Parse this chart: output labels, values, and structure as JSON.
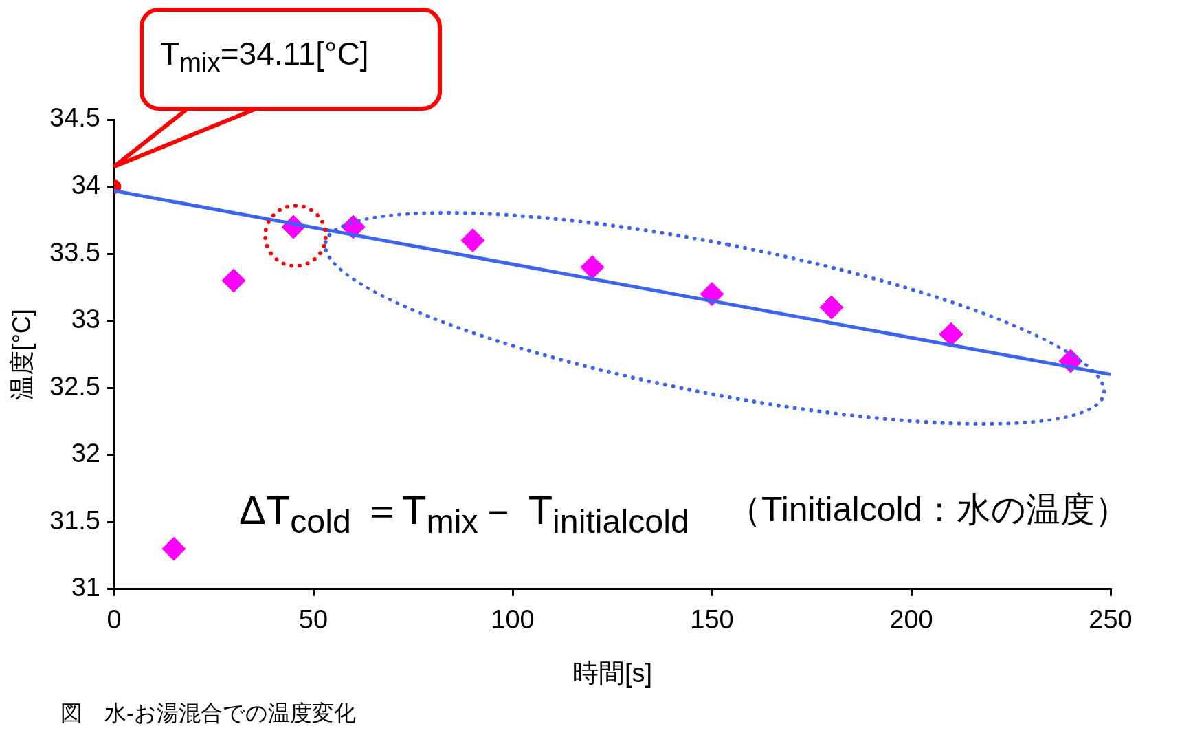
{
  "chart_data": {
    "type": "scatter",
    "xlabel": "時間[s]",
    "ylabel": "温度[°C]",
    "xlim": [
      0,
      250
    ],
    "xticks": [
      0,
      50,
      100,
      150,
      200,
      250
    ],
    "ylim": [
      31,
      34.5
    ],
    "yticks": [
      31,
      31.5,
      32,
      32.5,
      33,
      33.5,
      34,
      34.5
    ],
    "grid": false,
    "legend": false,
    "series": [
      {
        "type": "line",
        "color": "#3c64f0",
        "x": [
          0,
          250
        ],
        "values": [
          33.97,
          32.6
        ],
        "marker": "none",
        "line_style": "solid"
      },
      {
        "color": "#ff00ff",
        "x": [
          15,
          30,
          45,
          60,
          90,
          120,
          150,
          180,
          210,
          240
        ],
        "values": [
          31.3,
          33.3,
          33.7,
          33.7,
          33.6,
          33.4,
          33.2,
          33.1,
          32.9,
          32.7
        ],
        "marker": "diamond"
      },
      {
        "color": "#ff0000",
        "x": [
          0
        ],
        "values": [
          34
        ],
        "marker": "circle"
      }
    ],
    "annotations": [
      "T$_{mix}$=34.11[°C]",
      "ΔT$_{cold}$ ＝T$_{mix}$－ T$_{initialcold}$",
      "（Tinitialcold：水の温度）",
      "図　水-お湯混合での温度変化"
    ]
  }
}
